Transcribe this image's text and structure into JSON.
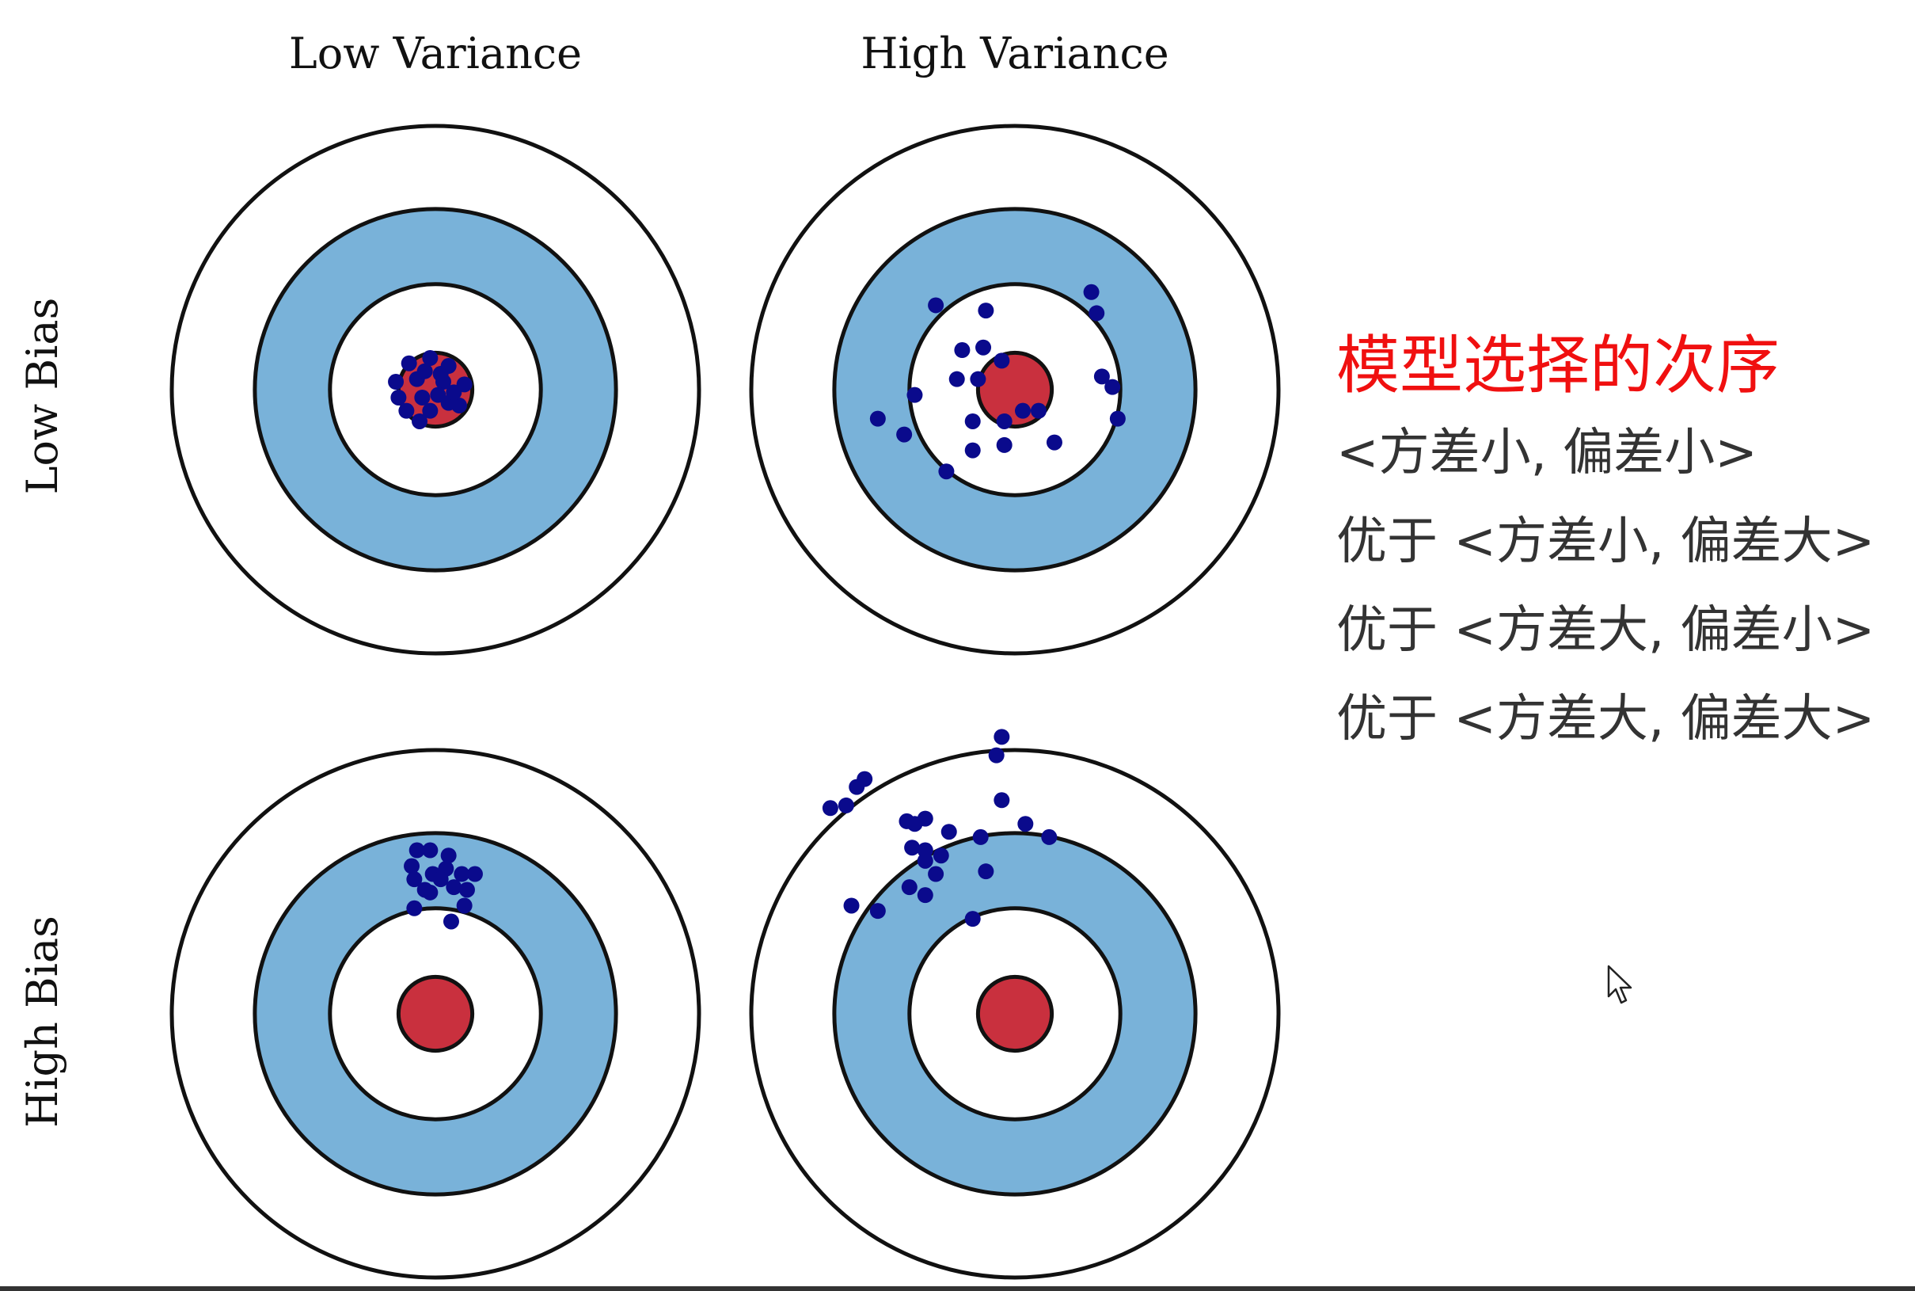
{
  "columns": [
    "Low Variance",
    "High Variance"
  ],
  "rows": [
    "Low Bias",
    "High Bias"
  ],
  "colors": {
    "bullseye": "#c9303e",
    "ring_blue": "#79b2d9",
    "ring_white": "#ffffff",
    "stroke": "#111111",
    "dot": "#0a0a8c",
    "title": "#f01010"
  },
  "targets": [
    {
      "name": "low-bias-low-variance",
      "hits": [
        [
          -0.1,
          0.1
        ],
        [
          -0.02,
          0.12
        ],
        [
          0.05,
          0.09
        ],
        [
          -0.15,
          0.03
        ],
        [
          -0.07,
          0.04
        ],
        [
          0.03,
          0.03
        ],
        [
          0.11,
          0.02
        ],
        [
          -0.14,
          -0.03
        ],
        [
          -0.05,
          -0.03
        ],
        [
          0.05,
          -0.05
        ],
        [
          -0.11,
          -0.08
        ],
        [
          -0.02,
          -0.08
        ],
        [
          0.09,
          -0.06
        ],
        [
          -0.06,
          -0.12
        ],
        [
          -0.04,
          0.07
        ],
        [
          0.02,
          0.06
        ],
        [
          0.07,
          -0.01
        ],
        [
          0.01,
          -0.02
        ]
      ]
    },
    {
      "name": "low-bias-high-variance",
      "hits": [
        [
          -0.3,
          0.32
        ],
        [
          -0.11,
          0.3
        ],
        [
          0.29,
          0.37
        ],
        [
          0.31,
          0.29
        ],
        [
          -0.2,
          0.15
        ],
        [
          -0.12,
          0.16
        ],
        [
          -0.05,
          0.11
        ],
        [
          -0.22,
          0.04
        ],
        [
          -0.14,
          0.04
        ],
        [
          0.33,
          0.05
        ],
        [
          0.37,
          0.01
        ],
        [
          -0.38,
          -0.02
        ],
        [
          0.39,
          -0.11
        ],
        [
          -0.52,
          -0.11
        ],
        [
          -0.16,
          -0.12
        ],
        [
          -0.04,
          -0.12
        ],
        [
          0.03,
          -0.08
        ],
        [
          0.09,
          -0.08
        ],
        [
          -0.42,
          -0.17
        ],
        [
          -0.16,
          -0.23
        ],
        [
          -0.04,
          -0.21
        ],
        [
          0.15,
          -0.2
        ],
        [
          -0.26,
          -0.31
        ]
      ]
    },
    {
      "name": "high-bias-low-variance",
      "hits": [
        [
          -0.07,
          0.62
        ],
        [
          -0.02,
          0.62
        ],
        [
          0.05,
          0.6
        ],
        [
          -0.09,
          0.56
        ],
        [
          0.04,
          0.55
        ],
        [
          0.1,
          0.53
        ],
        [
          -0.01,
          0.53
        ],
        [
          -0.08,
          0.51
        ],
        [
          0.15,
          0.53
        ],
        [
          0.02,
          0.51
        ],
        [
          0.07,
          0.48
        ],
        [
          -0.04,
          0.47
        ],
        [
          0.12,
          0.47
        ],
        [
          -0.08,
          0.4
        ],
        [
          0.11,
          0.41
        ],
        [
          0.06,
          0.35
        ],
        [
          -0.02,
          0.46
        ]
      ]
    },
    {
      "name": "high-bias-high-variance",
      "hits": [
        [
          -0.05,
          1.05
        ],
        [
          -0.07,
          0.98
        ],
        [
          -0.57,
          0.89
        ],
        [
          -0.6,
          0.86
        ],
        [
          -0.64,
          0.79
        ],
        [
          -0.7,
          0.78
        ],
        [
          -0.05,
          0.81
        ],
        [
          -0.41,
          0.73
        ],
        [
          -0.34,
          0.74
        ],
        [
          -0.38,
          0.72
        ],
        [
          0.04,
          0.72
        ],
        [
          -0.25,
          0.69
        ],
        [
          0.13,
          0.67
        ],
        [
          -0.13,
          0.67
        ],
        [
          -0.39,
          0.63
        ],
        [
          -0.34,
          0.62
        ],
        [
          -0.28,
          0.6
        ],
        [
          -0.34,
          0.58
        ],
        [
          -0.3,
          0.53
        ],
        [
          -0.11,
          0.54
        ],
        [
          -0.4,
          0.48
        ],
        [
          -0.34,
          0.45
        ],
        [
          -0.62,
          0.41
        ],
        [
          -0.52,
          0.39
        ],
        [
          -0.16,
          0.36
        ]
      ]
    }
  ],
  "panel": {
    "title": "模型选择的次序",
    "lines": [
      "<方差小, 偏差小>",
      "优于 <方差小, 偏差大>",
      "优于 <方差大, 偏差小>",
      "优于 <方差大, 偏差大>"
    ]
  }
}
